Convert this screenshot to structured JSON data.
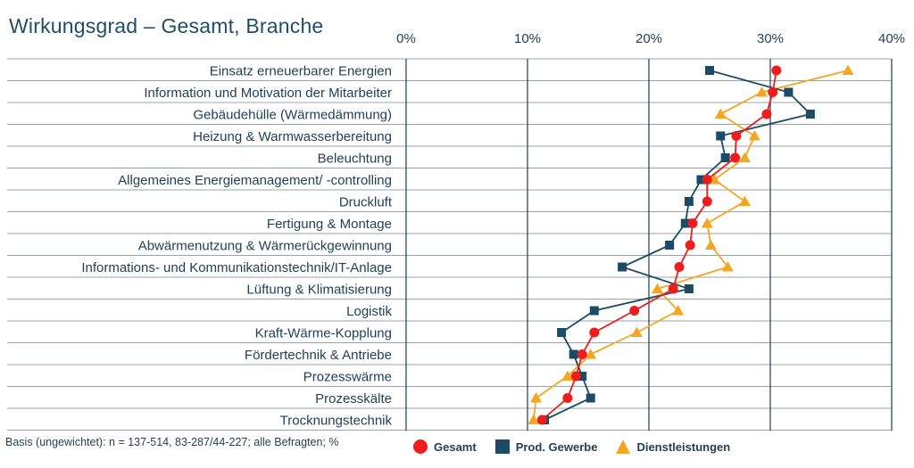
{
  "chart_data": {
    "type": "line",
    "title": "Wirkungsgrad – Gesamt, Branche",
    "orientation": "horizontal",
    "xlim": [
      0,
      40
    ],
    "x_ticks": [
      "0%",
      "10%",
      "20%",
      "30%",
      "40%"
    ],
    "x_tick_values": [
      0,
      10,
      20,
      30,
      40
    ],
    "grid": true,
    "legend_position": "bottom",
    "categories": [
      "Einsatz erneuerbarer Energien",
      "Information und Motivation der Mitarbeiter",
      "Gebäudehülle (Wärmedämmung)",
      "Heizung & Warmwasserbereitung",
      "Beleuchtung",
      "Allgemeines Energiemanagement/ -controlling",
      "Druckluft",
      "Fertigung & Montage",
      "Abwärmenutzung & Wärmerückgewinnung",
      "Informations- und Kommunikationstechnik/IT-Anlage",
      "Lüftung & Klimatisierung",
      "Logistik",
      "Kraft-Wärme-Kopplung",
      "Fördertechnik & Antriebe",
      "Prozesswärme",
      "Prozesskälte",
      "Trocknungstechnik"
    ],
    "series": [
      {
        "name": "Gesamt",
        "color": "#ee1c1c",
        "marker": "circle",
        "values": [
          30.5,
          30.2,
          29.7,
          27.2,
          27.1,
          24.8,
          24.8,
          23.6,
          23.4,
          22.5,
          22.0,
          18.8,
          15.5,
          14.5,
          14.0,
          13.3,
          11.2
        ]
      },
      {
        "name": "Prod. Gewerbe",
        "color": "#1b4b66",
        "marker": "square",
        "values": [
          25.0,
          31.5,
          33.3,
          25.9,
          26.3,
          24.3,
          23.3,
          23.0,
          21.7,
          17.8,
          23.3,
          15.5,
          12.8,
          13.8,
          14.5,
          15.2,
          11.4
        ]
      },
      {
        "name": "Dienstleistungen",
        "color": "#f5a623",
        "marker": "triangle",
        "values": [
          36.4,
          29.3,
          25.9,
          28.7,
          27.9,
          25.4,
          27.9,
          24.8,
          25.1,
          26.5,
          20.7,
          22.4,
          19.0,
          15.2,
          13.3,
          10.7,
          10.5
        ]
      }
    ],
    "footnote": "Basis (ungewichtet): n = 137-514, 83-287/44-227; alle Befragten; %"
  }
}
